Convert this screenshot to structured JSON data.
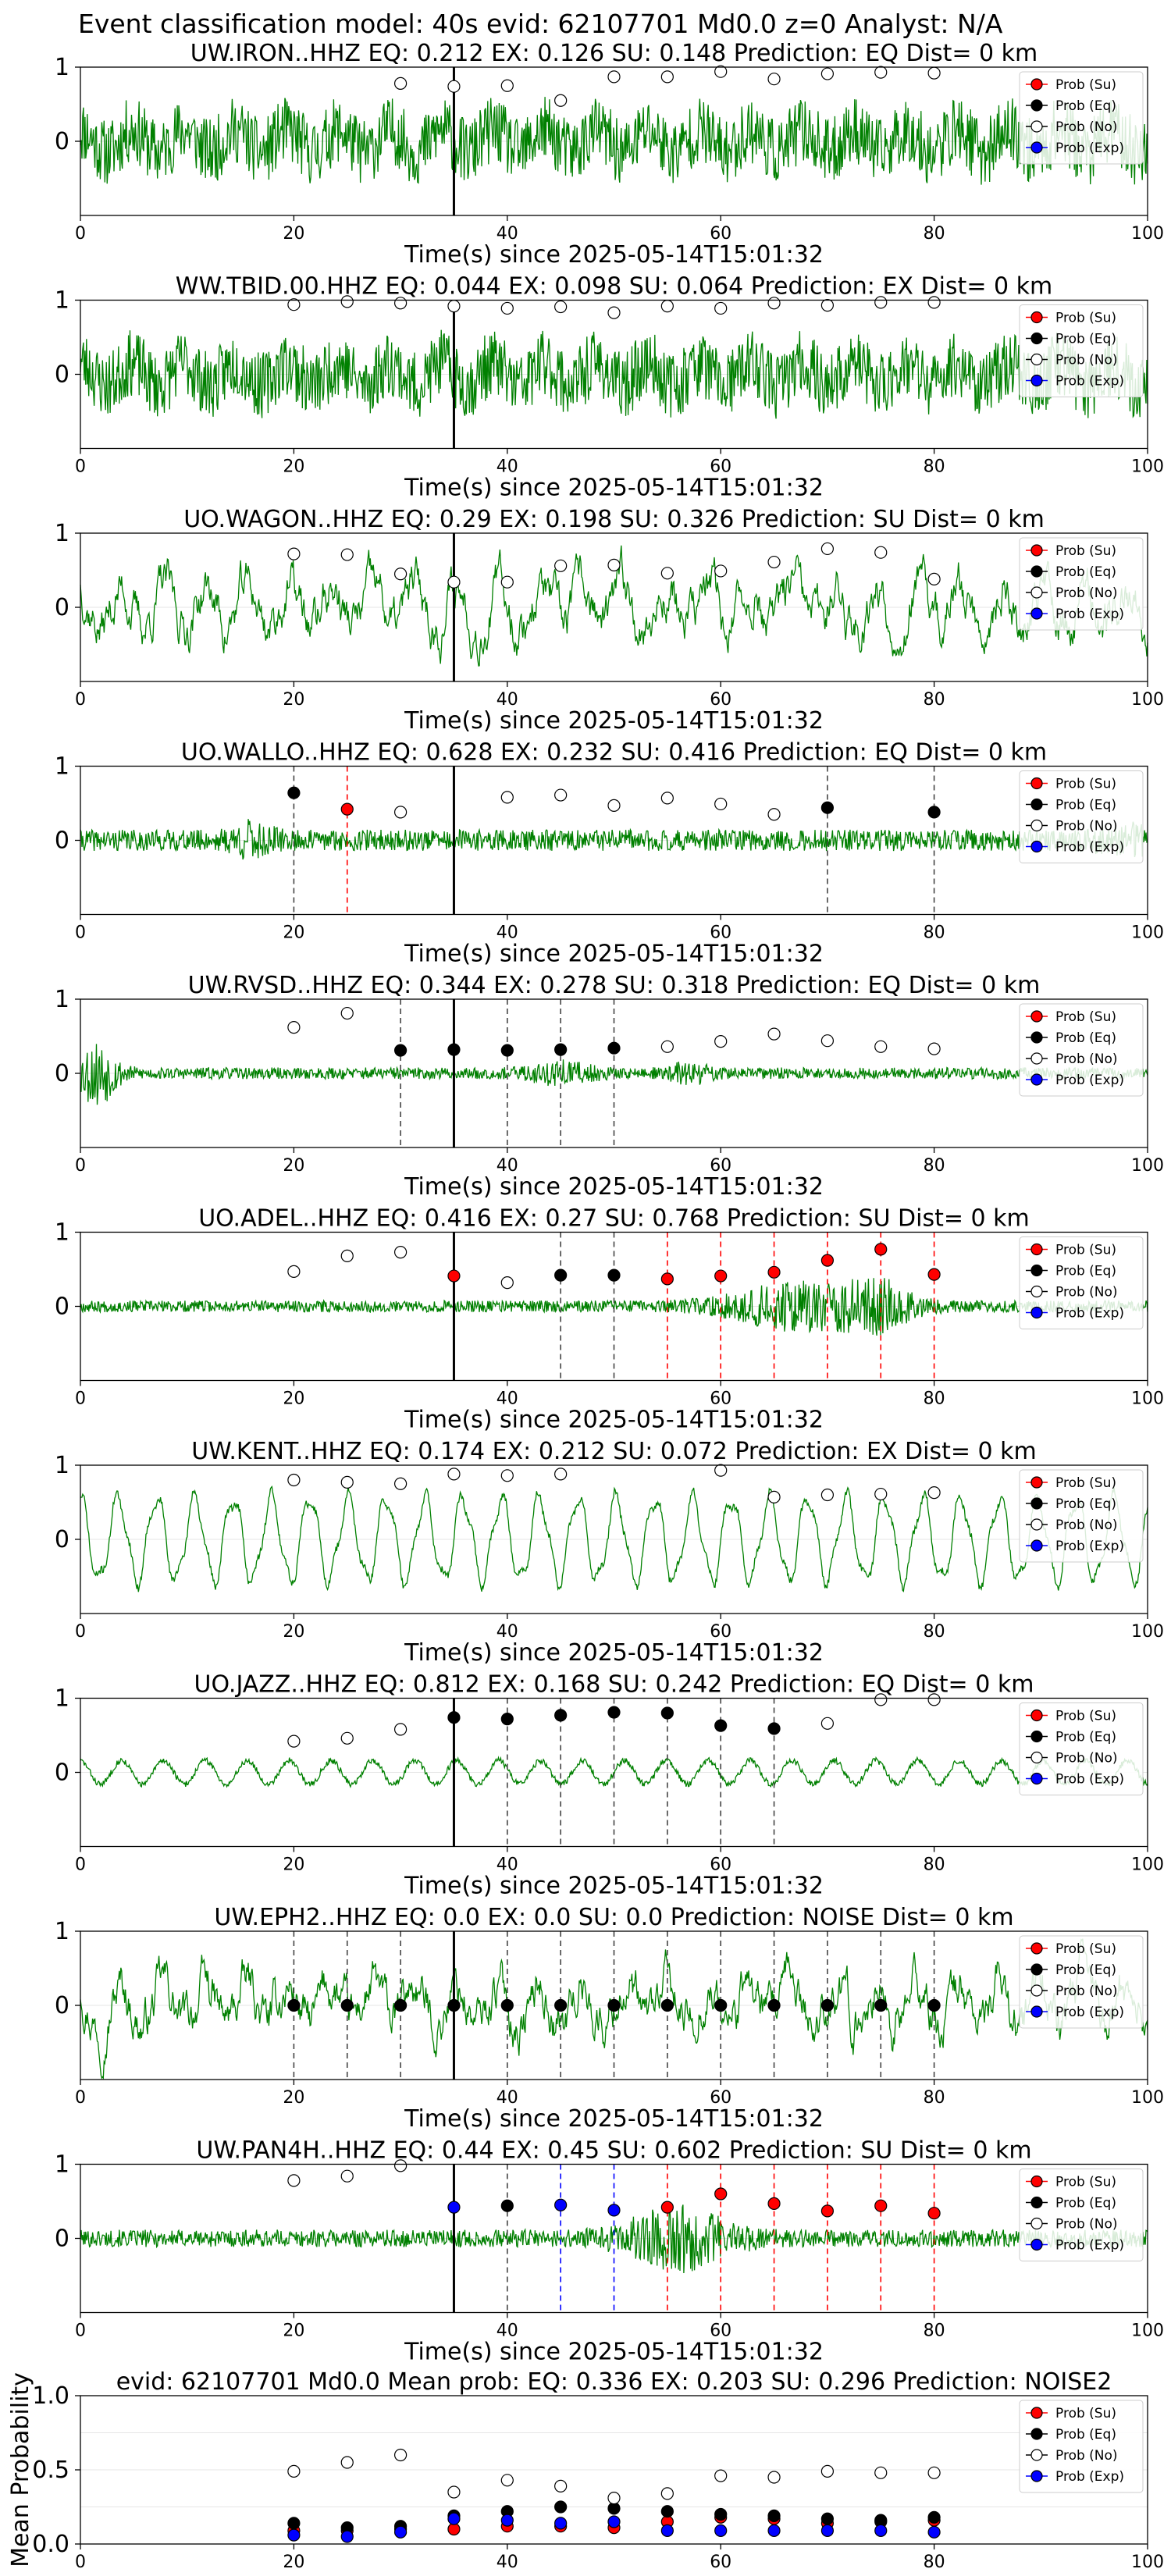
{
  "suptitle": "Event classification model: 40s evid: 62107701 Md0.0 z=0 Analyst: N/A",
  "legend_labels": [
    "Prob (Su)",
    "Prob (Eq)",
    "Prob (No)",
    "Prob (Exp)"
  ],
  "colors": {
    "su": "#ff0000",
    "eq": "#000000",
    "no": "#ffffff",
    "exp": "#0000ff",
    "trace": "#008000",
    "su_line": "#ff0000",
    "eq_line": "#444444",
    "exp_line": "#0000ff"
  },
  "chart_data": [
    {
      "type": "line",
      "title": "UW.IRON..HHZ   EQ: 0.212  EX: 0.126  SU: 0.148   Prediction: EQ    Dist= 0 km",
      "xlabel": "Time(s) since 2025-05-14T15:01:32",
      "xlim": [
        0,
        100
      ],
      "ylim": [
        -1,
        1
      ],
      "xticks": [
        0,
        20,
        40,
        60,
        80,
        100
      ],
      "yticks": [
        1,
        0
      ],
      "pick_line_x": 35,
      "trace": "noisy",
      "trace_seed": 11,
      "window_x": [
        20,
        25,
        30,
        35,
        40,
        45,
        50,
        55,
        60,
        65,
        70,
        75,
        80
      ],
      "points": [
        null,
        null,
        {
          "c": "no",
          "y": 0.78
        },
        {
          "c": "no",
          "y": 0.74
        },
        {
          "c": "no",
          "y": 0.75
        },
        {
          "c": "no",
          "y": 0.55
        },
        {
          "c": "no",
          "y": 0.87
        },
        {
          "c": "no",
          "y": 0.87
        },
        {
          "c": "no",
          "y": 0.94
        },
        {
          "c": "no",
          "y": 0.84
        },
        {
          "c": "no",
          "y": 0.91
        },
        {
          "c": "no",
          "y": 0.93
        },
        {
          "c": "no",
          "y": 0.92
        }
      ],
      "vlines": []
    },
    {
      "type": "line",
      "title": "WW.TBID.00.HHZ   EQ: 0.044  EX: 0.098  SU: 0.064   Prediction: EX    Dist= 0 km",
      "xlabel": "Time(s) since 2025-05-14T15:01:32",
      "xlim": [
        0,
        100
      ],
      "ylim": [
        -1,
        1
      ],
      "xticks": [
        0,
        20,
        40,
        60,
        80,
        100
      ],
      "yticks": [
        1,
        0
      ],
      "pick_line_x": 35,
      "trace": "noisy",
      "trace_seed": 23,
      "window_x": [
        20,
        25,
        30,
        35,
        40,
        45,
        50,
        55,
        60,
        65,
        70,
        75,
        80
      ],
      "points": [
        {
          "c": "no",
          "y": 0.94
        },
        {
          "c": "no",
          "y": 0.98
        },
        {
          "c": "no",
          "y": 0.96
        },
        {
          "c": "no",
          "y": 0.92
        },
        {
          "c": "no",
          "y": 0.89
        },
        {
          "c": "no",
          "y": 0.91
        },
        {
          "c": "no",
          "y": 0.83
        },
        {
          "c": "no",
          "y": 0.92
        },
        {
          "c": "no",
          "y": 0.89
        },
        {
          "c": "no",
          "y": 0.96
        },
        {
          "c": "no",
          "y": 0.93
        },
        {
          "c": "no",
          "y": 0.97
        },
        {
          "c": "no",
          "y": 0.97
        }
      ],
      "vlines": []
    },
    {
      "type": "line",
      "title": "UO.WAGON..HHZ   EQ: 0.29  EX: 0.198  SU: 0.326   Prediction: SU    Dist= 0 km",
      "xlabel": "Time(s) since 2025-05-14T15:01:32",
      "xlim": [
        0,
        100
      ],
      "ylim": [
        -1,
        1
      ],
      "xticks": [
        0,
        20,
        40,
        60,
        80,
        100
      ],
      "yticks": [
        1,
        0
      ],
      "pick_line_x": 35,
      "trace": "wavy",
      "trace_seed": 37,
      "window_x": [
        20,
        25,
        30,
        35,
        40,
        45,
        50,
        55,
        60,
        65,
        70,
        75,
        80
      ],
      "points": [
        {
          "c": "no",
          "y": 0.72
        },
        {
          "c": "no",
          "y": 0.71
        },
        {
          "c": "no",
          "y": 0.45
        },
        {
          "c": "no",
          "y": 0.34
        },
        {
          "c": "no",
          "y": 0.34
        },
        {
          "c": "no",
          "y": 0.56
        },
        {
          "c": "no",
          "y": 0.57
        },
        {
          "c": "no",
          "y": 0.46
        },
        {
          "c": "no",
          "y": 0.49
        },
        {
          "c": "no",
          "y": 0.61
        },
        {
          "c": "no",
          "y": 0.79
        },
        {
          "c": "no",
          "y": 0.74
        },
        {
          "c": "no",
          "y": 0.38
        }
      ],
      "vlines": []
    },
    {
      "type": "line",
      "title": "UO.WALLO..HHZ   EQ: 0.628  EX: 0.232  SU: 0.416   Prediction: EQ    Dist= 0 km",
      "xlabel": "Time(s) since 2025-05-14T15:01:32",
      "xlim": [
        0,
        100
      ],
      "ylim": [
        -1,
        1
      ],
      "xticks": [
        0,
        20,
        40,
        60,
        80,
        100
      ],
      "yticks": [
        1,
        0
      ],
      "pick_line_x": 35,
      "trace": "mixed",
      "trace_seed": 41,
      "window_x": [
        20,
        25,
        30,
        35,
        40,
        45,
        50,
        55,
        60,
        65,
        70,
        75,
        80
      ],
      "points": [
        {
          "c": "eq",
          "y": 0.64
        },
        {
          "c": "su",
          "y": 0.42
        },
        {
          "c": "no",
          "y": 0.38
        },
        null,
        {
          "c": "no",
          "y": 0.58
        },
        {
          "c": "no",
          "y": 0.61
        },
        {
          "c": "no",
          "y": 0.47
        },
        {
          "c": "no",
          "y": 0.57
        },
        {
          "c": "no",
          "y": 0.49
        },
        {
          "c": "no",
          "y": 0.35
        },
        {
          "c": "eq",
          "y": 0.44
        },
        null,
        {
          "c": "eq",
          "y": 0.38
        }
      ],
      "vlines": [
        {
          "x": 20,
          "c": "eq"
        },
        {
          "x": 25,
          "c": "su"
        },
        {
          "x": 70,
          "c": "eq"
        },
        {
          "x": 80,
          "c": "eq"
        }
      ]
    },
    {
      "type": "line",
      "title": "UW.RVSD..HHZ   EQ: 0.344  EX: 0.278  SU: 0.318   Prediction: EQ    Dist= 0 km",
      "xlabel": "Time(s) since 2025-05-14T15:01:32",
      "xlim": [
        0,
        100
      ],
      "ylim": [
        -1,
        1
      ],
      "xticks": [
        0,
        20,
        40,
        60,
        80,
        100
      ],
      "yticks": [
        1,
        0
      ],
      "pick_line_x": 35,
      "trace": "quiet",
      "trace_seed": 53,
      "window_x": [
        20,
        25,
        30,
        35,
        40,
        45,
        50,
        55,
        60,
        65,
        70,
        75,
        80
      ],
      "points": [
        {
          "c": "no",
          "y": 0.62
        },
        {
          "c": "no",
          "y": 0.81
        },
        {
          "c": "eq",
          "y": 0.31
        },
        {
          "c": "eq",
          "y": 0.32
        },
        {
          "c": "eq",
          "y": 0.31
        },
        {
          "c": "eq",
          "y": 0.32
        },
        {
          "c": "eq",
          "y": 0.34
        },
        {
          "c": "no",
          "y": 0.36
        },
        {
          "c": "no",
          "y": 0.43
        },
        {
          "c": "no",
          "y": 0.53
        },
        {
          "c": "no",
          "y": 0.44
        },
        {
          "c": "no",
          "y": 0.36
        },
        {
          "c": "no",
          "y": 0.33
        }
      ],
      "vlines": [
        {
          "x": 30,
          "c": "eq"
        },
        {
          "x": 40,
          "c": "eq"
        },
        {
          "x": 45,
          "c": "eq"
        },
        {
          "x": 50,
          "c": "eq"
        }
      ]
    },
    {
      "type": "line",
      "title": "UO.ADEL..HHZ   EQ: 0.416  EX: 0.27  SU: 0.768   Prediction: SU    Dist= 0 km",
      "xlabel": "Time(s) since 2025-05-14T15:01:32",
      "xlim": [
        0,
        100
      ],
      "ylim": [
        -1,
        1
      ],
      "xticks": [
        0,
        20,
        40,
        60,
        80,
        100
      ],
      "yticks": [
        1,
        0
      ],
      "pick_line_x": 35,
      "trace": "burst",
      "trace_seed": 67,
      "window_x": [
        20,
        25,
        30,
        35,
        40,
        45,
        50,
        55,
        60,
        65,
        70,
        75,
        80
      ],
      "points": [
        {
          "c": "no",
          "y": 0.47
        },
        {
          "c": "no",
          "y": 0.68
        },
        {
          "c": "no",
          "y": 0.73
        },
        {
          "c": "su",
          "y": 0.41
        },
        {
          "c": "no",
          "y": 0.32
        },
        {
          "c": "eq",
          "y": 0.42
        },
        {
          "c": "eq",
          "y": 0.42
        },
        {
          "c": "su",
          "y": 0.37
        },
        {
          "c": "su",
          "y": 0.41
        },
        {
          "c": "su",
          "y": 0.46
        },
        {
          "c": "su",
          "y": 0.62
        },
        {
          "c": "su",
          "y": 0.77
        },
        {
          "c": "su",
          "y": 0.43
        }
      ],
      "vlines": [
        {
          "x": 45,
          "c": "eq"
        },
        {
          "x": 50,
          "c": "eq"
        },
        {
          "x": 55,
          "c": "su"
        },
        {
          "x": 60,
          "c": "su"
        },
        {
          "x": 65,
          "c": "su"
        },
        {
          "x": 70,
          "c": "su"
        },
        {
          "x": 75,
          "c": "su"
        },
        {
          "x": 80,
          "c": "su"
        }
      ]
    },
    {
      "type": "line",
      "title": "UW.KENT..HHZ   EQ: 0.174  EX: 0.212  SU: 0.072   Prediction: EX    Dist= 0 km",
      "xlabel": "Time(s) since 2025-05-14T15:01:32",
      "xlim": [
        0,
        100
      ],
      "ylim": [
        -1,
        1
      ],
      "xticks": [
        0,
        20,
        40,
        60,
        80,
        100
      ],
      "yticks": [
        1,
        0
      ],
      "pick_line_x": null,
      "trace": "sine",
      "trace_seed": 71,
      "window_x": [
        20,
        25,
        30,
        35,
        40,
        45,
        50,
        55,
        60,
        65,
        70,
        75,
        80
      ],
      "points": [
        {
          "c": "no",
          "y": 0.8
        },
        {
          "c": "no",
          "y": 0.77
        },
        {
          "c": "no",
          "y": 0.75
        },
        {
          "c": "no",
          "y": 0.88
        },
        {
          "c": "no",
          "y": 0.86
        },
        {
          "c": "no",
          "y": 0.88
        },
        null,
        null,
        {
          "c": "no",
          "y": 0.93
        },
        {
          "c": "no",
          "y": 0.57
        },
        {
          "c": "no",
          "y": 0.6
        },
        {
          "c": "no",
          "y": 0.61
        },
        {
          "c": "no",
          "y": 0.63
        }
      ],
      "vlines": []
    },
    {
      "type": "line",
      "title": "UO.JAZZ..HHZ   EQ: 0.812  EX: 0.168  SU: 0.242   Prediction: EQ    Dist= 0 km",
      "xlabel": "Time(s) since 2025-05-14T15:01:32",
      "xlim": [
        0,
        100
      ],
      "ylim": [
        -1,
        1
      ],
      "xticks": [
        0,
        20,
        40,
        60,
        80,
        100
      ],
      "yticks": [
        1,
        0
      ],
      "pick_line_x": 35,
      "trace": "smallsine",
      "trace_seed": 83,
      "window_x": [
        20,
        25,
        30,
        35,
        40,
        45,
        50,
        55,
        60,
        65,
        70,
        75,
        80
      ],
      "points": [
        {
          "c": "no",
          "y": 0.42
        },
        {
          "c": "no",
          "y": 0.46
        },
        {
          "c": "no",
          "y": 0.58
        },
        {
          "c": "eq",
          "y": 0.74
        },
        {
          "c": "eq",
          "y": 0.72
        },
        {
          "c": "eq",
          "y": 0.77
        },
        {
          "c": "eq",
          "y": 0.81
        },
        {
          "c": "eq",
          "y": 0.8
        },
        {
          "c": "eq",
          "y": 0.63
        },
        {
          "c": "eq",
          "y": 0.59
        },
        {
          "c": "no",
          "y": 0.66
        },
        {
          "c": "no",
          "y": 0.98
        },
        {
          "c": "no",
          "y": 0.98
        }
      ],
      "vlines": [
        {
          "x": 40,
          "c": "eq"
        },
        {
          "x": 45,
          "c": "eq"
        },
        {
          "x": 50,
          "c": "eq"
        },
        {
          "x": 55,
          "c": "eq"
        },
        {
          "x": 60,
          "c": "eq"
        },
        {
          "x": 65,
          "c": "eq"
        }
      ]
    },
    {
      "type": "line",
      "title": "UW.EPH2..HHZ   EQ: 0.0  EX: 0.0  SU: 0.0   Prediction: NOISE    Dist= 0 km",
      "xlabel": "Time(s) since 2025-05-14T15:01:32",
      "xlim": [
        0,
        100
      ],
      "ylim": [
        -1,
        1
      ],
      "xticks": [
        0,
        20,
        40,
        60,
        80,
        100
      ],
      "yticks": [
        1,
        0
      ],
      "pick_line_x": 35,
      "trace": "wavy",
      "trace_seed": 97,
      "window_x": [
        20,
        25,
        30,
        35,
        40,
        45,
        50,
        55,
        60,
        65,
        70,
        75,
        80
      ],
      "points": [
        {
          "c": "eq",
          "y": 0.0
        },
        {
          "c": "eq",
          "y": 0.0
        },
        {
          "c": "eq",
          "y": 0.0
        },
        {
          "c": "eq",
          "y": 0.0
        },
        {
          "c": "eq",
          "y": 0.0
        },
        {
          "c": "eq",
          "y": 0.0
        },
        {
          "c": "eq",
          "y": 0.0
        },
        {
          "c": "eq",
          "y": 0.0
        },
        {
          "c": "eq",
          "y": 0.0
        },
        {
          "c": "eq",
          "y": 0.0
        },
        {
          "c": "eq",
          "y": 0.0
        },
        {
          "c": "eq",
          "y": 0.0
        },
        {
          "c": "eq",
          "y": 0.0
        }
      ],
      "vlines": [
        {
          "x": 20,
          "c": "eq"
        },
        {
          "x": 25,
          "c": "eq"
        },
        {
          "x": 30,
          "c": "eq"
        },
        {
          "x": 40,
          "c": "eq"
        },
        {
          "x": 45,
          "c": "eq"
        },
        {
          "x": 50,
          "c": "eq"
        },
        {
          "x": 55,
          "c": "eq"
        },
        {
          "x": 60,
          "c": "eq"
        },
        {
          "x": 65,
          "c": "eq"
        },
        {
          "x": 70,
          "c": "eq"
        },
        {
          "x": 75,
          "c": "eq"
        },
        {
          "x": 80,
          "c": "eq"
        }
      ]
    },
    {
      "type": "line",
      "title": "UW.PAN4H..HHZ   EQ: 0.44  EX: 0.45  SU: 0.602   Prediction: SU    Dist= 0 km",
      "xlabel": "Time(s) since 2025-05-14T15:01:32",
      "xlim": [
        0,
        100
      ],
      "ylim": [
        -1,
        1
      ],
      "xticks": [
        0,
        20,
        40,
        60,
        80,
        100
      ],
      "yticks": [
        1,
        0
      ],
      "pick_line_x": 35,
      "trace": "burst2",
      "trace_seed": 101,
      "window_x": [
        20,
        25,
        30,
        35,
        40,
        45,
        50,
        55,
        60,
        65,
        70,
        75,
        80
      ],
      "points": [
        {
          "c": "no",
          "y": 0.78
        },
        {
          "c": "no",
          "y": 0.84
        },
        {
          "c": "no",
          "y": 0.98
        },
        {
          "c": "exp",
          "y": 0.42
        },
        {
          "c": "eq",
          "y": 0.44
        },
        {
          "c": "exp",
          "y": 0.45
        },
        {
          "c": "exp",
          "y": 0.38
        },
        {
          "c": "su",
          "y": 0.42
        },
        {
          "c": "su",
          "y": 0.6
        },
        {
          "c": "su",
          "y": 0.47
        },
        {
          "c": "su",
          "y": 0.37
        },
        {
          "c": "su",
          "y": 0.44
        },
        {
          "c": "su",
          "y": 0.34
        }
      ],
      "vlines": [
        {
          "x": 40,
          "c": "eq"
        },
        {
          "x": 45,
          "c": "exp"
        },
        {
          "x": 50,
          "c": "exp"
        },
        {
          "x": 55,
          "c": "su"
        },
        {
          "x": 60,
          "c": "su"
        },
        {
          "x": 65,
          "c": "su"
        },
        {
          "x": 70,
          "c": "su"
        },
        {
          "x": 75,
          "c": "su"
        },
        {
          "x": 80,
          "c": "su"
        }
      ]
    }
  ],
  "summary_chart": {
    "type": "scatter",
    "title": "evid: 62107701  Md0.0   Mean prob:   EQ: 0.336  EX: 0.203  SU: 0.296   Prediction: NOISE2",
    "ylabel": "Mean Probability",
    "xlim": [
      0,
      100
    ],
    "ylim": [
      0,
      1
    ],
    "xticks": [
      0,
      20,
      40,
      60,
      80,
      100
    ],
    "yticks": [
      "0.0",
      "0.5",
      "1.0"
    ],
    "x": [
      20,
      25,
      30,
      35,
      40,
      45,
      50,
      55,
      60,
      65,
      70,
      75,
      80
    ],
    "series": [
      {
        "name": "Prob (Su)",
        "c": "su",
        "values": [
          0.09,
          0.09,
          0.1,
          0.1,
          0.12,
          0.12,
          0.11,
          0.15,
          0.18,
          0.17,
          0.14,
          0.15,
          0.16
        ]
      },
      {
        "name": "Prob (Eq)",
        "c": "eq",
        "values": [
          0.14,
          0.11,
          0.12,
          0.19,
          0.22,
          0.25,
          0.24,
          0.22,
          0.2,
          0.19,
          0.17,
          0.16,
          0.18
        ]
      },
      {
        "name": "Prob (No)",
        "c": "no",
        "values": [
          0.49,
          0.55,
          0.6,
          0.35,
          0.43,
          0.39,
          0.31,
          0.34,
          0.46,
          0.45,
          0.49,
          0.48,
          0.48
        ]
      },
      {
        "name": "Prob (Exp)",
        "c": "exp",
        "values": [
          0.06,
          0.05,
          0.08,
          0.17,
          0.16,
          0.14,
          0.15,
          0.09,
          0.09,
          0.09,
          0.09,
          0.09,
          0.08
        ]
      }
    ]
  }
}
